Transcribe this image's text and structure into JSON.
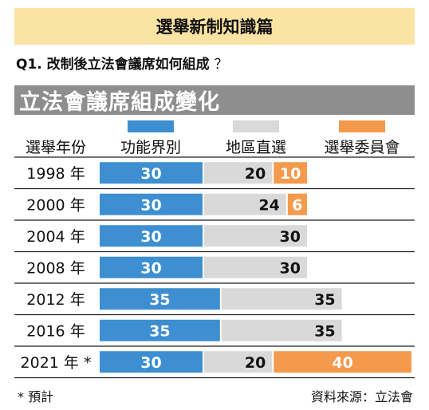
{
  "banner": "選舉新制知識篇",
  "question": {
    "text": "Q1. 改制後立法會議席如何組成",
    "mark": "？"
  },
  "title": "立法會議席組成變化",
  "footnote": "* 預計",
  "source": "資料來源：立法會",
  "chart_data": {
    "type": "bar",
    "stacked": true,
    "orientation": "horizontal",
    "category_header": "選舉年份",
    "categories": [
      "1998 年",
      "2000 年",
      "2004 年",
      "2008 年",
      "2012 年",
      "2016 年",
      "2021 年 *"
    ],
    "series": [
      {
        "name": "功能界別",
        "color": "#3d8fd1",
        "values": [
          30,
          30,
          30,
          30,
          35,
          35,
          30
        ]
      },
      {
        "name": "地區直選",
        "color": "#d9d9d9",
        "values": [
          20,
          24,
          30,
          30,
          35,
          35,
          20
        ]
      },
      {
        "name": "選舉委員會",
        "color": "#f59a4c",
        "values": [
          10,
          6,
          0,
          0,
          0,
          0,
          40
        ]
      }
    ],
    "legend_position": "top",
    "data_labels": true
  }
}
